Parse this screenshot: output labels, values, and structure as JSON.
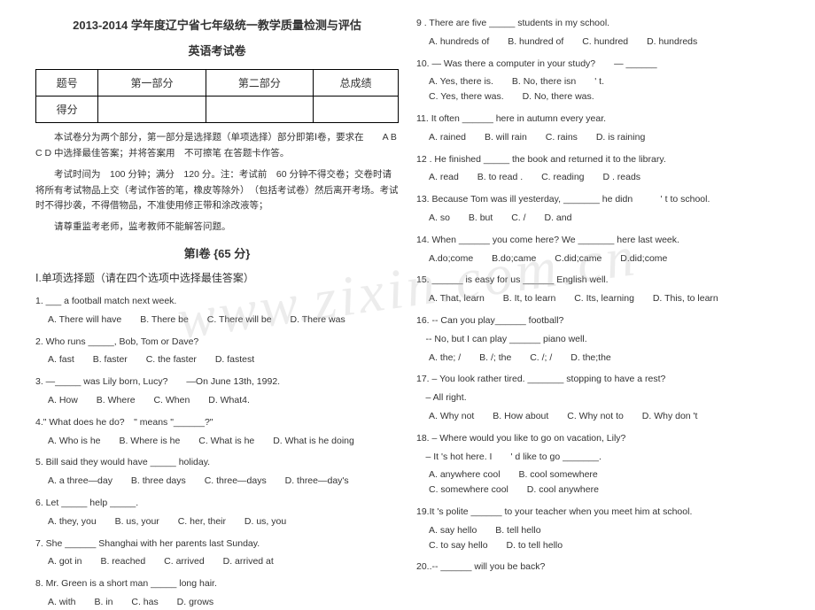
{
  "header": {
    "main": "2013-2014 学年度辽宁省七年级统一教学质量检测与评估",
    "sub": "英语考试卷"
  },
  "scoreTable": {
    "r1c1": "题号",
    "r1c2": "第一部分",
    "r1c3": "第二部分",
    "r1c4": "总成绩",
    "r2c1": "得分"
  },
  "instructions": {
    "p1": "本试卷分为两个部分，第一部分是选择题（单项选择）部分即第Ⅰ卷，要求在　　A B C D 中选择最佳答案；并将答案用　不可擦笔 在答题卡作答。",
    "p2": "考试时间为　100 分钟；满分　120 分。注：考试前　60 分钟不得交卷；交卷时请将所有考试物品上交（考试作答的笔，橡皮等除外）　（包括考试卷）然后离开考场。考试时不得抄袭，不得借物品，不准使用修正带和涂改液等；",
    "p3": "请尊重监考老师，监考教师不能解答问题。"
  },
  "sectionTitle": "第Ⅰ卷 {65 分}",
  "partTitle": "Ⅰ.单项选择题（请在四个选项中选择最佳答案）",
  "q1": {
    "text": "1. ___ a football match next week.",
    "a": "A. There will have",
    "b": "B. There be",
    "c": "C. There will be",
    "d": "D. There was"
  },
  "q2": {
    "text": "2. Who runs _____, Bob, Tom or Dave?",
    "a": "A. fast",
    "b": "B. faster",
    "c": "C. the faster",
    "d": "D. fastest"
  },
  "q3": {
    "text": "3. —_____ was Lily born, Lucy?　　—On June 13th, 1992.",
    "a": "A. How",
    "b": "B. Where",
    "c": "C. When",
    "d": "D. What4."
  },
  "q4": {
    "text": "4.\" What does he do?　\" means \"______?\"",
    "a": "A. Who is he",
    "b": "B. Where is he",
    "c": "C. What is he",
    "d": "D. What is he doing"
  },
  "q5": {
    "text": "5. Bill said they would have _____ holiday.",
    "a": "A. a three—day",
    "b": "B. three days",
    "c": "C. three—days",
    "d": "D. three—day's"
  },
  "q6": {
    "text": "6. Let _____ help _____.",
    "a": "A. they, you",
    "b": "B. us, your",
    "c": "C. her, their",
    "d": "D. us, you"
  },
  "q7": {
    "text": "7. She ______ Shanghai with her parents last Sunday.",
    "a": "A. got in",
    "b": "B. reached",
    "c": "C. arrived",
    "d": "D. arrived at"
  },
  "q8": {
    "text": "8. Mr. Green is a short man _____ long hair.",
    "a": "A. with",
    "b": "B. in",
    "c": "C. has",
    "d": "D. grows"
  },
  "q9": {
    "text": "9 . There are five _____ students in my school.",
    "a": "A. hundreds of",
    "b": "B. hundred of",
    "c": "C. hundred",
    "d": "D. hundreds"
  },
  "q10": {
    "text": "10. — Was there a computer in your study?　　— ______",
    "a": "A. Yes, there is.",
    "b": "B. No, there isn　　' t.",
    "c": "C. Yes, there was.",
    "d": "D. No, there was."
  },
  "q11": {
    "text": "11. It often ______ here in autumn every year.",
    "a": "A. rained",
    "b": "B. will rain",
    "c": "C. rains",
    "d": "D. is raining"
  },
  "q12": {
    "text": "12 . He finished _____ the book and returned it to the library.",
    "a": "A. read",
    "b": "B. to read .",
    "c": "C. reading",
    "d": "D . reads"
  },
  "q13": {
    "text": "13. Because Tom was ill yesterday, _______ he didn　　　' t to school.",
    "a": "A. so",
    "b": "B. but",
    "c": "C. /",
    "d": "D. and"
  },
  "q14": {
    "text": "14. When ______ you come here? We _______ here last week.",
    "a": "A.do;come",
    "b": "B.do;came",
    "c": "C.did;came",
    "d": "D.did;come"
  },
  "q15": {
    "text": "15. ______ is easy for us ______ English well.",
    "a": "A. That, learn",
    "b": "B. It, to learn",
    "c": "C. Its, learning",
    "d": "D. This, to learn"
  },
  "q16": {
    "text": "16. -- Can you play______ football?",
    "text2": "　-- No, but I can play ______ piano well.",
    "a": "A. the; /",
    "b": "B. /; the",
    "c": "C. /; /",
    "d": "D. the;the"
  },
  "q17": {
    "text": "17. – You look rather tired. _______ stopping to have a rest?",
    "text2": "　– All right.",
    "a": "A. Why not",
    "b": "B. How about",
    "c": "C. Why not to",
    "d": "D. Why don 't"
  },
  "q18": {
    "text": "18. – Where would you like to go on vacation, Lily?",
    "text2": "　– It 's hot here. I　　' d like to go _______.",
    "a": "A. anywhere cool",
    "b": "B. cool somewhere",
    "c": "C. somewhere cool",
    "d": "D. cool anywhere"
  },
  "q19": {
    "text": "19.It 's polite ______ to your teacher when you meet him at school.",
    "a": "A. say hello",
    "b": "B. tell hello",
    "c": "C. to say hello",
    "d": "D. to tell hello"
  },
  "q20": {
    "text": "20..-- ______ will you be back?"
  },
  "watermark": "www.zixin.com.cn"
}
